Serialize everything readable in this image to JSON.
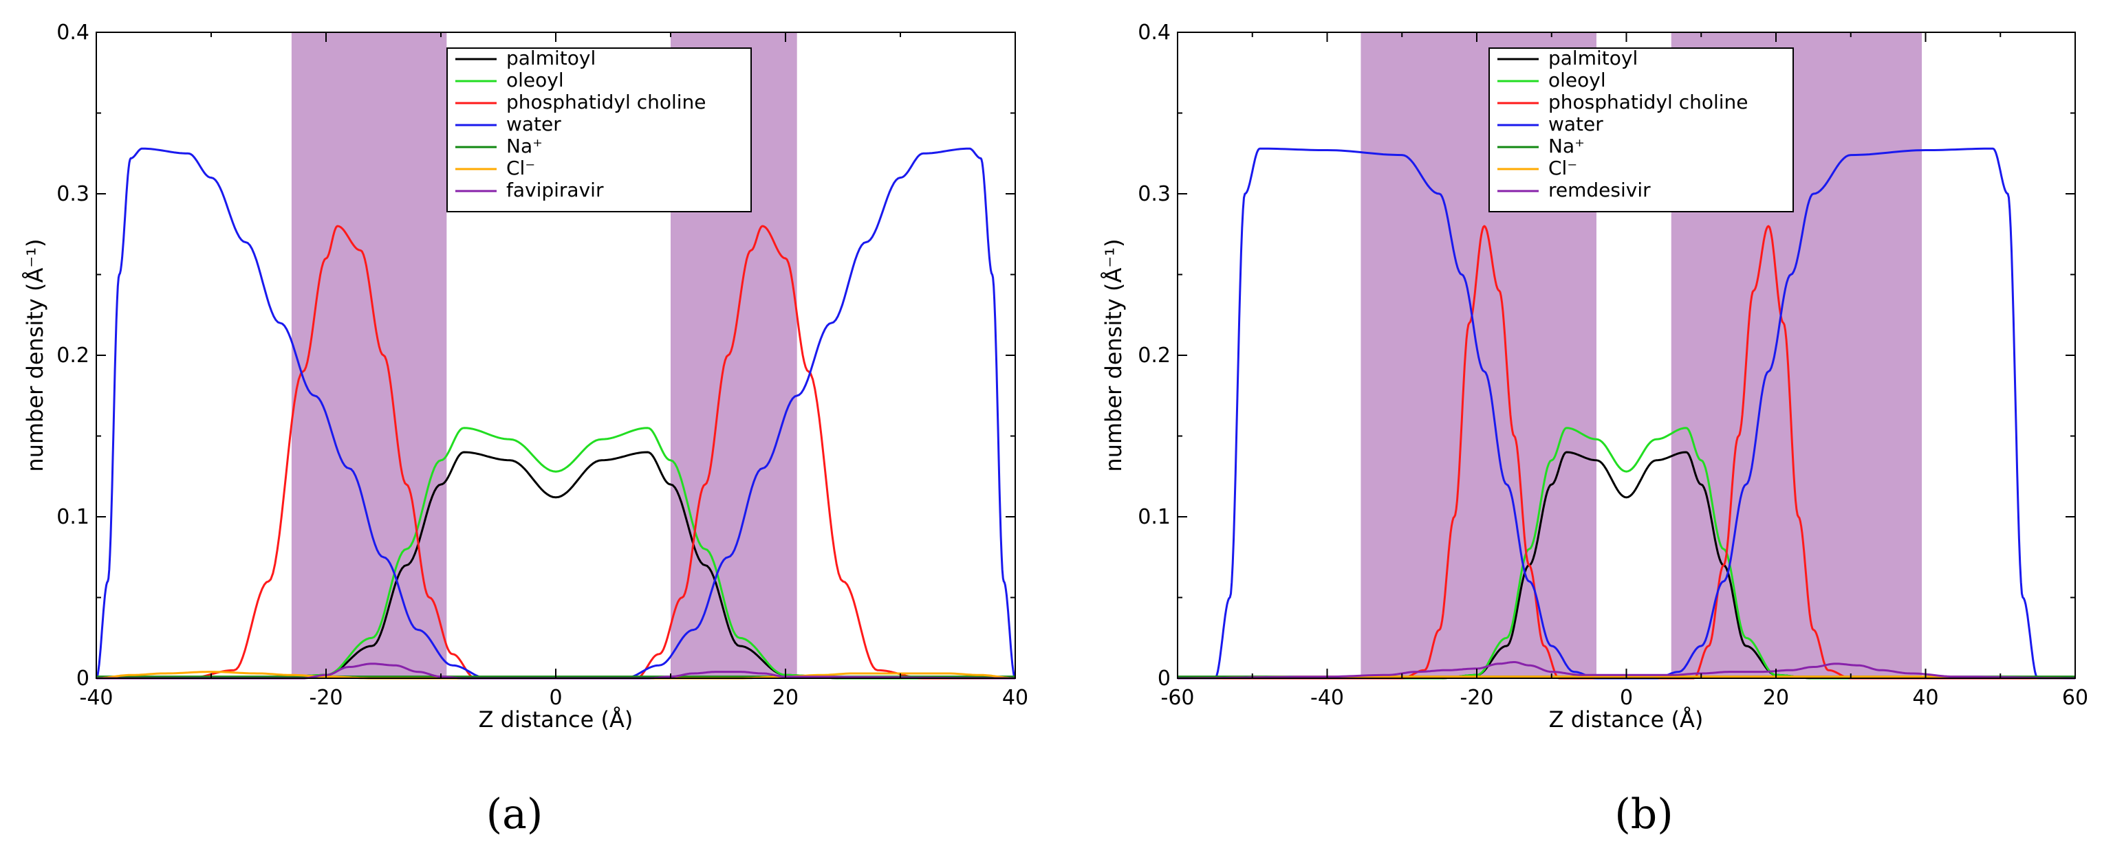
{
  "chart_data": [
    {
      "type": "line",
      "panel_label": "(a)",
      "xlabel": "Z distance (Å)",
      "ylabel": "number density (Å⁻¹)",
      "xlim": [
        -40,
        40
      ],
      "ylim": [
        0,
        0.4
      ],
      "xticks": [
        -40,
        -20,
        0,
        20,
        40
      ],
      "yticks": [
        0,
        0.1,
        0.2,
        0.3,
        0.4
      ],
      "xtick_labels": [
        "-40",
        "-20",
        "0",
        "20",
        "40"
      ],
      "ytick_labels": [
        "0",
        "0.1",
        "0.2",
        "0.3",
        "0.4"
      ],
      "grid": false,
      "legend_position": "top-center",
      "shaded_regions": [
        [
          -23,
          -9.5
        ],
        [
          10,
          21
        ]
      ],
      "shade_color": "#c9a0cf",
      "series": [
        {
          "name": "palmitoyl",
          "color": "#000000",
          "x": [
            -40,
            -25,
            -20,
            -16,
            -13,
            -10,
            -8,
            -4,
            0,
            4,
            8,
            10,
            13,
            16,
            20,
            25,
            40
          ],
          "y": [
            0,
            0,
            0.002,
            0.02,
            0.07,
            0.12,
            0.14,
            0.135,
            0.112,
            0.135,
            0.14,
            0.12,
            0.07,
            0.02,
            0.002,
            0,
            0
          ]
        },
        {
          "name": "oleoyl",
          "color": "#22dd22",
          "x": [
            -40,
            -25,
            -20,
            -16,
            -13,
            -10,
            -8,
            -4,
            0,
            4,
            8,
            10,
            13,
            16,
            20,
            25,
            40
          ],
          "y": [
            0,
            0,
            0.002,
            0.025,
            0.08,
            0.135,
            0.155,
            0.148,
            0.128,
            0.148,
            0.155,
            0.135,
            0.08,
            0.025,
            0.002,
            0,
            0
          ]
        },
        {
          "name": "phosphatidyl choline",
          "color": "#ff1a1a",
          "x": [
            -40,
            -32,
            -28,
            -25,
            -22,
            -20,
            -19,
            -17,
            -15,
            -13,
            -11,
            -9,
            -7,
            7,
            9,
            11,
            13,
            15,
            17,
            18,
            20,
            22,
            25,
            28,
            32,
            40
          ],
          "y": [
            0,
            0,
            0.005,
            0.06,
            0.19,
            0.26,
            0.28,
            0.265,
            0.2,
            0.12,
            0.05,
            0.015,
            0,
            0,
            0.015,
            0.05,
            0.12,
            0.2,
            0.265,
            0.28,
            0.26,
            0.19,
            0.06,
            0.005,
            0,
            0
          ]
        },
        {
          "name": "water",
          "color": "#1a1aee",
          "x": [
            -40,
            -39,
            -38,
            -37,
            -36,
            -32,
            -30,
            -27,
            -24,
            -21,
            -18,
            -15,
            -12,
            -9,
            -6,
            -4,
            4,
            6,
            9,
            12,
            15,
            18,
            21,
            24,
            27,
            30,
            32,
            36,
            37,
            38,
            39,
            40
          ],
          "y": [
            0,
            0.06,
            0.25,
            0.322,
            0.328,
            0.325,
            0.31,
            0.27,
            0.22,
            0.175,
            0.13,
            0.075,
            0.03,
            0.008,
            0,
            0,
            0,
            0,
            0.008,
            0.03,
            0.075,
            0.13,
            0.175,
            0.22,
            0.27,
            0.31,
            0.325,
            0.328,
            0.322,
            0.25,
            0.06,
            0
          ]
        },
        {
          "name": "Na⁺",
          "color": "#118811",
          "x": [
            -40,
            40
          ],
          "y": [
            0.001,
            0.001
          ]
        },
        {
          "name": "Cl⁻",
          "color": "#ffaa00",
          "x": [
            -40,
            -37,
            -34,
            -30,
            -26,
            -23,
            -20,
            -16,
            16,
            20,
            23,
            26,
            30,
            34,
            37,
            40
          ],
          "y": [
            0,
            0.002,
            0.003,
            0.004,
            0.003,
            0.002,
            0.001,
            0,
            0,
            0.001,
            0.002,
            0.003,
            0.003,
            0.003,
            0.002,
            0
          ]
        },
        {
          "name": "favipiravir",
          "color": "#8822aa",
          "x": [
            -40,
            -22,
            -20,
            -18,
            -16,
            -14,
            -12,
            -10,
            -8,
            8,
            10,
            12,
            14,
            16,
            18,
            20,
            40
          ],
          "y": [
            0,
            0,
            0.002,
            0.007,
            0.009,
            0.008,
            0.004,
            0.001,
            0,
            0,
            0.001,
            0.003,
            0.004,
            0.004,
            0.003,
            0.001,
            0
          ]
        }
      ]
    },
    {
      "type": "line",
      "panel_label": "(b)",
      "xlabel": "Z distance (Å)",
      "ylabel": "number density (Å⁻¹)",
      "xlim": [
        -60,
        60
      ],
      "ylim": [
        0,
        0.4
      ],
      "xticks": [
        -60,
        -40,
        -20,
        0,
        20,
        40,
        60
      ],
      "yticks": [
        0,
        0.1,
        0.2,
        0.3,
        0.4
      ],
      "xtick_labels": [
        "-60",
        "-40",
        "-20",
        "0",
        "20",
        "40",
        "60"
      ],
      "ytick_labels": [
        "0",
        "0.1",
        "0.2",
        "0.3",
        "0.4"
      ],
      "grid": false,
      "legend_position": "top-center",
      "shaded_regions": [
        [
          -35.5,
          -4
        ],
        [
          6,
          39.5
        ]
      ],
      "shade_color": "#c9a0cf",
      "series": [
        {
          "name": "palmitoyl",
          "color": "#000000",
          "x": [
            -60,
            -25,
            -20,
            -16,
            -13,
            -10,
            -8,
            -4,
            0,
            4,
            8,
            10,
            13,
            16,
            20,
            25,
            60
          ],
          "y": [
            0,
            0,
            0.002,
            0.02,
            0.07,
            0.12,
            0.14,
            0.135,
            0.112,
            0.135,
            0.14,
            0.12,
            0.07,
            0.02,
            0.002,
            0,
            0
          ]
        },
        {
          "name": "oleoyl",
          "color": "#22dd22",
          "x": [
            -60,
            -25,
            -20,
            -16,
            -13,
            -10,
            -8,
            -4,
            0,
            4,
            8,
            10,
            13,
            16,
            20,
            25,
            60
          ],
          "y": [
            0,
            0,
            0.002,
            0.025,
            0.08,
            0.135,
            0.155,
            0.148,
            0.128,
            0.148,
            0.155,
            0.135,
            0.08,
            0.025,
            0.002,
            0,
            0
          ]
        },
        {
          "name": "phosphatidyl choline",
          "color": "#ff1a1a",
          "x": [
            -60,
            -30,
            -27,
            -25,
            -23,
            -21,
            -19,
            -17,
            -15,
            -13,
            -11,
            -9,
            9,
            11,
            13,
            15,
            17,
            19,
            21,
            23,
            25,
            27,
            30,
            60
          ],
          "y": [
            0,
            0,
            0.005,
            0.03,
            0.1,
            0.22,
            0.28,
            0.24,
            0.15,
            0.07,
            0.02,
            0,
            0,
            0.02,
            0.07,
            0.15,
            0.24,
            0.28,
            0.22,
            0.1,
            0.03,
            0.005,
            0,
            0
          ]
        },
        {
          "name": "water",
          "color": "#1a1aee",
          "x": [
            -60,
            -55,
            -53,
            -51,
            -49,
            -40,
            -30,
            -25,
            -22,
            -19,
            -16,
            -13,
            -10,
            -7,
            -4,
            4,
            7,
            10,
            13,
            16,
            19,
            22,
            25,
            30,
            40,
            49,
            51,
            53,
            55,
            60
          ],
          "y": [
            0,
            0,
            0.05,
            0.3,
            0.328,
            0.327,
            0.324,
            0.3,
            0.25,
            0.19,
            0.12,
            0.06,
            0.02,
            0.004,
            0,
            0,
            0.004,
            0.02,
            0.06,
            0.12,
            0.19,
            0.25,
            0.3,
            0.324,
            0.327,
            0.328,
            0.3,
            0.05,
            0,
            0
          ]
        },
        {
          "name": "Na⁺",
          "color": "#118811",
          "x": [
            -60,
            60
          ],
          "y": [
            0.001,
            0.001
          ]
        },
        {
          "name": "Cl⁻",
          "color": "#ffaa00",
          "x": [
            -60,
            -40,
            -30,
            30,
            40,
            60
          ],
          "y": [
            0,
            0.001,
            0.001,
            0.001,
            0.001,
            0
          ]
        },
        {
          "name": "remdesivir",
          "color": "#8822aa",
          "x": [
            -60,
            -40,
            -32,
            -28,
            -24,
            -20,
            -17,
            -15,
            -13,
            -10,
            -6,
            0,
            6,
            10,
            14,
            18,
            22,
            25,
            28,
            31,
            34,
            38,
            44,
            60
          ],
          "y": [
            0,
            0.001,
            0.002,
            0.004,
            0.005,
            0.006,
            0.009,
            0.01,
            0.008,
            0.004,
            0.002,
            0.002,
            0.002,
            0.003,
            0.004,
            0.004,
            0.005,
            0.007,
            0.009,
            0.008,
            0.005,
            0.003,
            0.001,
            0
          ]
        }
      ]
    }
  ]
}
